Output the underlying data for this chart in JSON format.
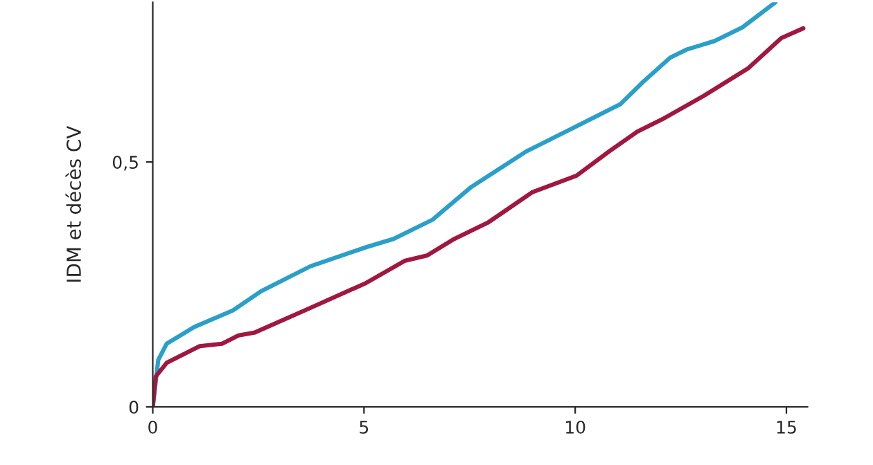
{
  "chart_data": {
    "type": "line",
    "ylabel": "IDM et décès CV",
    "xlim": [
      0,
      15.5
    ],
    "xticks": [
      0,
      5,
      10,
      15
    ],
    "ylim": [
      0,
      0.826
    ],
    "yticks": [
      0,
      {
        "value": 0.5,
        "label": "0,5"
      }
    ],
    "marker": "none",
    "line_style": "solid",
    "series": [
      {
        "color": "#2a9fc9",
        "x": [
          0,
          0.13,
          0.33,
          0.98,
          1.9,
          2.56,
          3.73,
          5.05,
          5.7,
          6.62,
          7.54,
          8.85,
          10.03,
          11.07,
          11.6,
          12.25,
          12.65,
          13.3,
          13.96,
          14.74
        ],
        "values": [
          0,
          0.096,
          0.129,
          0.163,
          0.197,
          0.236,
          0.287,
          0.326,
          0.343,
          0.382,
          0.449,
          0.522,
          0.573,
          0.618,
          0.663,
          0.713,
          0.73,
          0.747,
          0.775,
          0.826
        ]
      },
      {
        "color": "#a0173f",
        "x": [
          0,
          0.07,
          0.33,
          1.11,
          1.64,
          2.03,
          2.42,
          3.73,
          5.05,
          5.96,
          6.49,
          7.14,
          7.93,
          8.98,
          10.03,
          10.81,
          11.47,
          12.12,
          13.04,
          14.09,
          14.88,
          15.4
        ],
        "values": [
          0,
          0.062,
          0.09,
          0.124,
          0.129,
          0.146,
          0.152,
          0.202,
          0.253,
          0.298,
          0.309,
          0.343,
          0.376,
          0.438,
          0.472,
          0.522,
          0.562,
          0.59,
          0.635,
          0.691,
          0.753,
          0.773
        ]
      }
    ]
  }
}
